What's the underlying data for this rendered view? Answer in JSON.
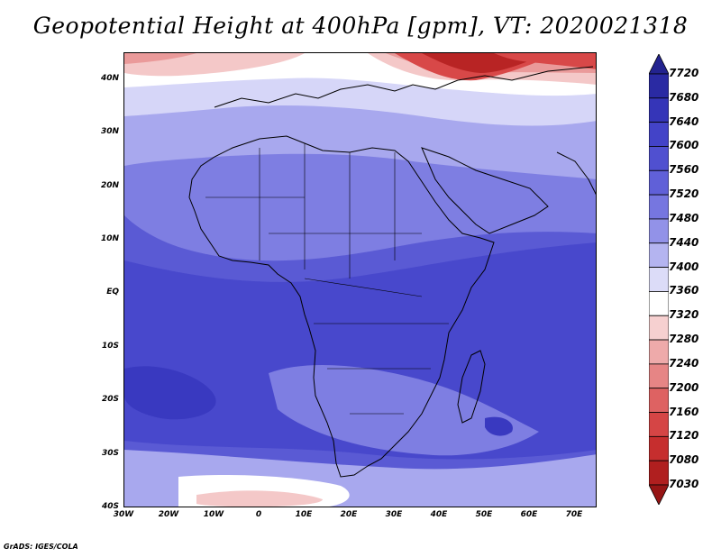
{
  "title": "Geopotential Height at 400hPa [gpm], VT: 2020021318",
  "credit": "GrADS: IGES/COLA",
  "map": {
    "lat_range": [
      -40,
      45
    ],
    "lon_range": [
      -30,
      75
    ],
    "lat_ticks": [
      "40N",
      "30N",
      "20N",
      "10N",
      "EQ",
      "10S",
      "20S",
      "30S",
      "40S"
    ],
    "lon_ticks": [
      "30W",
      "20W",
      "10W",
      "0",
      "10E",
      "20E",
      "30E",
      "40E",
      "50E",
      "60E",
      "70E"
    ]
  },
  "colorbar": {
    "labels": [
      "7720",
      "7680",
      "7640",
      "7600",
      "7560",
      "7520",
      "7480",
      "7440",
      "7400",
      "7360",
      "7320",
      "7280",
      "7240",
      "7200",
      "7160",
      "7120",
      "7080",
      "7030"
    ],
    "colors": [
      "#23238f",
      "#2a2aa3",
      "#3535b8",
      "#4343c8",
      "#5050d0",
      "#6060d8",
      "#7676e0",
      "#9292e8",
      "#b4b4f0",
      "#dcdcf8",
      "#ffffff",
      "#f6d0d0",
      "#eeaaaa",
      "#e68585",
      "#de6262",
      "#d54545",
      "#c62e2e",
      "#b01f1f",
      "#961515"
    ]
  },
  "contour_colors": {
    "dark_blue": "#3939c0",
    "blue": "#4848cc",
    "mid_blue": "#5a5ad4",
    "light_blue": "#7e7ee2",
    "pale_blue": "#a8a8ee",
    "very_pale_blue": "#d6d6f8",
    "white": "#ffffff",
    "pale_red": "#f4c8c8",
    "light_red": "#ea9a9a",
    "red": "#d84848",
    "dark_red": "#b82424"
  }
}
